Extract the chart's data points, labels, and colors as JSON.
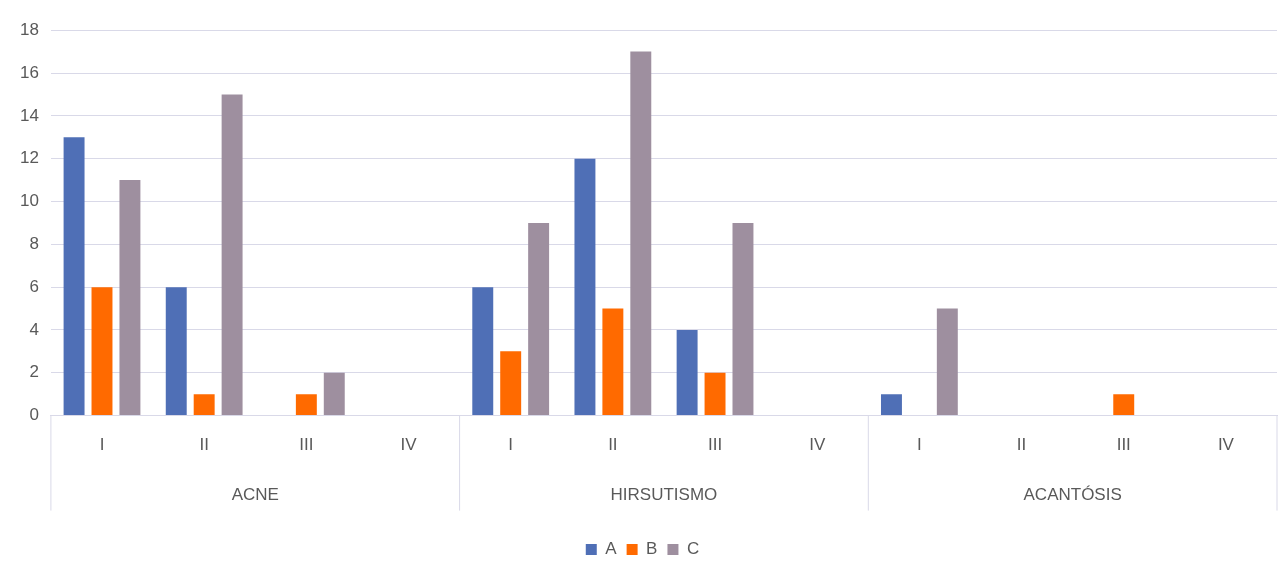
{
  "chart_data": {
    "type": "bar",
    "categories": [
      "I",
      "II",
      "III",
      "IV",
      "I",
      "II",
      "III",
      "IV",
      "I",
      "II",
      "III",
      "IV"
    ],
    "annotations": [
      "ACNE",
      "HIRSUTISMO",
      "ACANTÓSIS"
    ],
    "series": [
      {
        "name": "A",
        "color": "#4f6fb6",
        "values": [
          13,
          6,
          null,
          null,
          6,
          12,
          4,
          null,
          1,
          null,
          null,
          null
        ]
      },
      {
        "name": "B",
        "color": "#ff6a00",
        "values": [
          6,
          1,
          1,
          null,
          3,
          5,
          2,
          null,
          null,
          null,
          1,
          null
        ]
      },
      {
        "name": "C",
        "color": "#9e8f9f",
        "values": [
          11,
          15,
          2,
          null,
          9,
          17,
          9,
          null,
          5,
          null,
          null,
          null
        ]
      }
    ],
    "ylim": [
      0,
      18
    ],
    "yticks": [
      0,
      2,
      4,
      6,
      8,
      10,
      12,
      14,
      16,
      18
    ],
    "grid": "y",
    "legend": "bottom"
  }
}
